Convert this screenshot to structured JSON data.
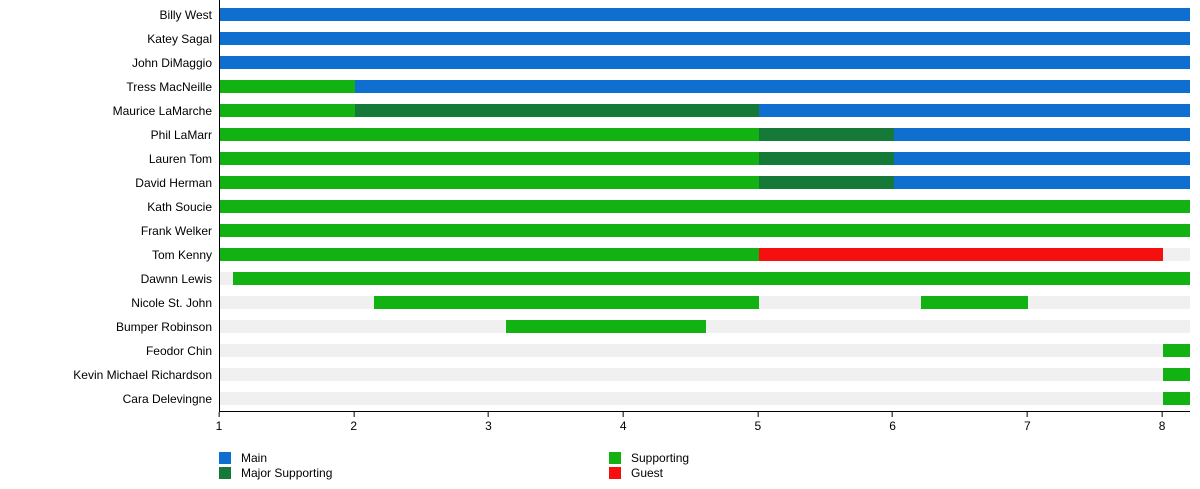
{
  "colors": {
    "track": "#f0f0f0",
    "axis": "#000000",
    "background": "#ffffff"
  },
  "chart_data": {
    "type": "bar",
    "orientation": "horizontal",
    "title": "",
    "xlabel": "",
    "ylabel": "",
    "grid": false,
    "x_axis": {
      "min": 1,
      "max": 8.2,
      "ticks": [
        1,
        2,
        3,
        4,
        5,
        6,
        7,
        8
      ]
    },
    "role_colors": {
      "Main": "#0e6fd0",
      "Major Supporting": "#157a38",
      "Supporting": "#11b211",
      "Guest": "#f50f0f"
    },
    "legend": {
      "position": "bottom",
      "left_column": [
        "Main",
        "Major Supporting"
      ],
      "right_column": [
        "Supporting",
        "Guest"
      ]
    },
    "rows": [
      {
        "name": "Billy West",
        "segments": [
          {
            "role": "Main",
            "start": 1,
            "end": 8.2
          }
        ]
      },
      {
        "name": "Katey Sagal",
        "segments": [
          {
            "role": "Main",
            "start": 1,
            "end": 8.2
          }
        ]
      },
      {
        "name": "John DiMaggio",
        "segments": [
          {
            "role": "Main",
            "start": 1,
            "end": 8.2
          }
        ]
      },
      {
        "name": "Tress MacNeille",
        "segments": [
          {
            "role": "Supporting",
            "start": 1,
            "end": 2
          },
          {
            "role": "Main",
            "start": 2,
            "end": 8.2
          }
        ]
      },
      {
        "name": "Maurice LaMarche",
        "segments": [
          {
            "role": "Supporting",
            "start": 1,
            "end": 2
          },
          {
            "role": "Major Supporting",
            "start": 2,
            "end": 5
          },
          {
            "role": "Main",
            "start": 5,
            "end": 8.2
          }
        ]
      },
      {
        "name": "Phil LaMarr",
        "segments": [
          {
            "role": "Supporting",
            "start": 1,
            "end": 5
          },
          {
            "role": "Major Supporting",
            "start": 5,
            "end": 6
          },
          {
            "role": "Main",
            "start": 6,
            "end": 8.2
          }
        ]
      },
      {
        "name": "Lauren Tom",
        "segments": [
          {
            "role": "Supporting",
            "start": 1,
            "end": 5
          },
          {
            "role": "Major Supporting",
            "start": 5,
            "end": 6
          },
          {
            "role": "Main",
            "start": 6,
            "end": 8.2
          }
        ]
      },
      {
        "name": "David Herman",
        "segments": [
          {
            "role": "Supporting",
            "start": 1,
            "end": 5
          },
          {
            "role": "Major Supporting",
            "start": 5,
            "end": 6
          },
          {
            "role": "Main",
            "start": 6,
            "end": 8.2
          }
        ]
      },
      {
        "name": "Kath Soucie",
        "segments": [
          {
            "role": "Supporting",
            "start": 1,
            "end": 8.2
          }
        ]
      },
      {
        "name": "Frank Welker",
        "segments": [
          {
            "role": "Supporting",
            "start": 1,
            "end": 8.2
          }
        ]
      },
      {
        "name": "Tom Kenny",
        "segments": [
          {
            "role": "Supporting",
            "start": 1,
            "end": 5
          },
          {
            "role": "Guest",
            "start": 5,
            "end": 8
          }
        ]
      },
      {
        "name": "Dawnn Lewis",
        "segments": [
          {
            "role": "Supporting",
            "start": 1.1,
            "end": 8.2
          }
        ]
      },
      {
        "name": "Nicole St. John",
        "segments": [
          {
            "role": "Supporting",
            "start": 2.14,
            "end": 5
          },
          {
            "role": "Supporting",
            "start": 6.2,
            "end": 7
          }
        ]
      },
      {
        "name": "Bumper Robinson",
        "segments": [
          {
            "role": "Supporting",
            "start": 3.12,
            "end": 4.61
          }
        ]
      },
      {
        "name": "Feodor Chin",
        "segments": [
          {
            "role": "Supporting",
            "start": 8,
            "end": 8.2
          }
        ]
      },
      {
        "name": "Kevin Michael Richardson",
        "segments": [
          {
            "role": "Supporting",
            "start": 8,
            "end": 8.2
          }
        ]
      },
      {
        "name": "Cara Delevingne",
        "segments": [
          {
            "role": "Supporting",
            "start": 8,
            "end": 8.2
          }
        ]
      }
    ]
  }
}
